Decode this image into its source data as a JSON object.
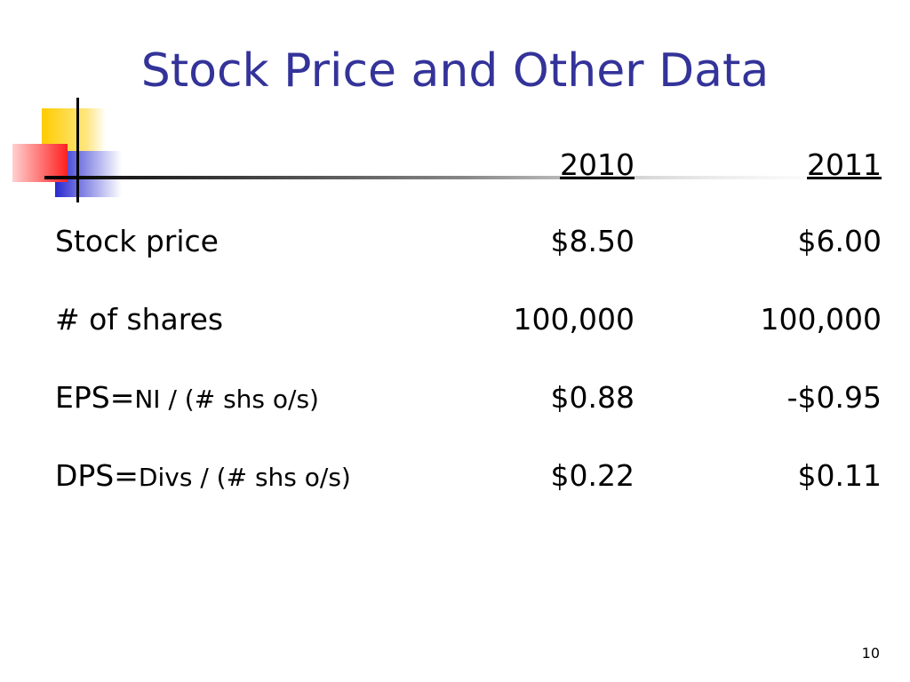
{
  "title": "Stock Price and Other Data",
  "table": {
    "header": [
      "2010",
      "2011"
    ],
    "rows": [
      {
        "label": "Stock price",
        "cells": [
          "$8.50",
          "$6.00"
        ]
      },
      {
        "label": "# of shares",
        "cells": [
          "100,000",
          "100,000"
        ]
      },
      {
        "label": "EPS=",
        "label_detail": "NI / (# shs o/s)",
        "cells": [
          "$0.88",
          "-$0.95"
        ]
      },
      {
        "label": "DPS=",
        "label_detail": "Divs / (# shs o/s)",
        "cells": [
          "$0.22",
          "$0.11"
        ]
      }
    ]
  },
  "page_number": "10"
}
